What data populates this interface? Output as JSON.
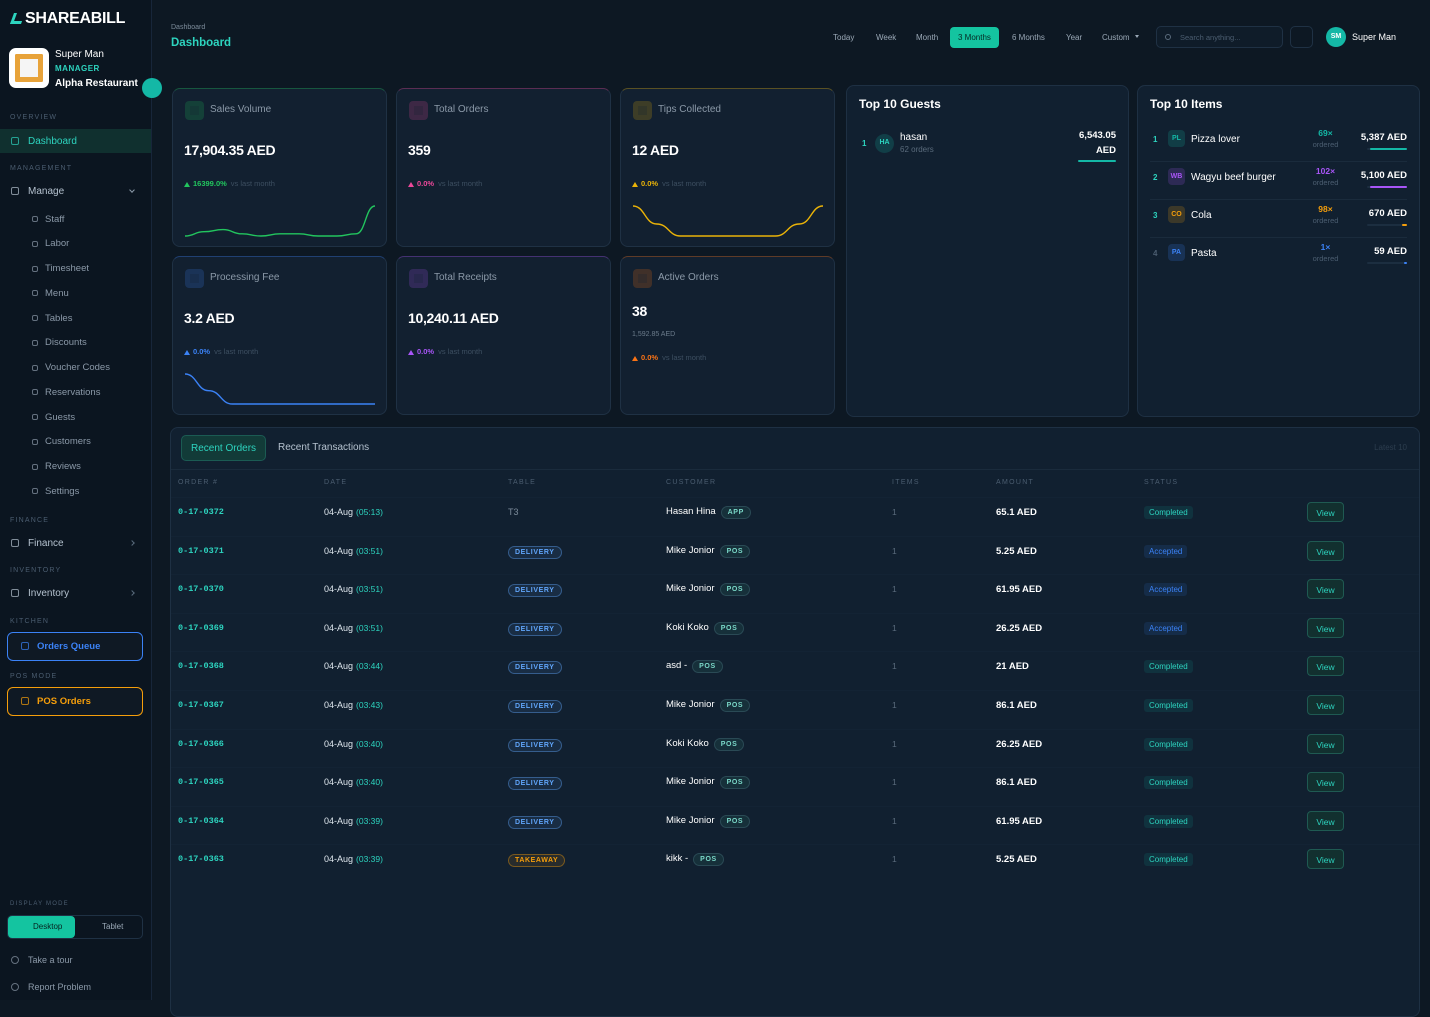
{
  "sidebar": {
    "brand": "SHAREABILL",
    "user": {
      "name": "Super Man",
      "role": "MANAGER",
      "restaurant": "Alpha Restaurant"
    },
    "sections": [
      {
        "title": "OVERVIEW",
        "items": [
          {
            "label": "Dashboard",
            "active": true
          }
        ]
      },
      {
        "title": "MANAGEMENT",
        "items": [
          {
            "label": "Manage",
            "children": [
              "Staff",
              "Labor",
              "Timesheet",
              "Menu",
              "Tables",
              "Discounts",
              "Voucher Codes",
              "Reservations",
              "Guests",
              "Customers",
              "Reviews",
              "Settings"
            ]
          }
        ]
      },
      {
        "title": "FINANCE",
        "items": [
          {
            "label": "Finance"
          }
        ]
      },
      {
        "title": "INVENTORY",
        "items": [
          {
            "label": "Inventory"
          }
        ]
      },
      {
        "title": "KITCHEN",
        "button": "Orders Queue",
        "color": "#3b82f6"
      },
      {
        "title": "POS MODE",
        "button": "POS Orders",
        "color": "#f59e0b"
      }
    ],
    "display_mode": {
      "title": "DISPLAY MODE",
      "options": [
        "Desktop",
        "Tablet"
      ],
      "active": 0
    },
    "footer": [
      "Take a tour",
      "Report Problem"
    ]
  },
  "header": {
    "breadcrumb": "Dashboard",
    "title": "Dashboard",
    "filters": [
      "Today",
      "Week",
      "Month",
      "3 Months",
      "6 Months",
      "Year",
      "Custom"
    ],
    "active_filter": 3,
    "search_placeholder": "Search anything...",
    "user": {
      "initials": "SM",
      "name": "Super Man"
    }
  },
  "cards": [
    {
      "label": "Sales Volume",
      "value": "17,904.35 AED",
      "change": "16399.0%",
      "note": "vs last month",
      "color": "#22c55e",
      "trend": [
        3,
        4,
        4.5,
        3.5,
        3,
        3.5,
        3.5,
        3,
        3,
        3.5,
        10
      ]
    },
    {
      "label": "Total Orders",
      "value": "359",
      "change": "0.0%",
      "note": "vs last month",
      "color": "#ec4899"
    },
    {
      "label": "Tips Collected",
      "value": "12 AED",
      "change": "0.0%",
      "note": "vs last month",
      "color": "#eab308",
      "trend": [
        9,
        6,
        4,
        4,
        4,
        4,
        4,
        6,
        9
      ]
    },
    {
      "label": "Processing Fee",
      "value": "3.2 AED",
      "change": "0.0%",
      "note": "vs last month",
      "color": "#3b82f6",
      "trend": [
        10,
        5,
        1,
        1,
        1,
        1,
        1,
        1,
        1
      ]
    },
    {
      "label": "Total Receipts",
      "value": "10,240.11 AED",
      "change": "0.0%",
      "note": "vs last month",
      "color": "#a855f7"
    },
    {
      "label": "Active Orders",
      "value": "38",
      "sub": "1,592.85 AED",
      "change": "0.0%",
      "note": "vs last month",
      "color": "#f97316"
    }
  ],
  "top_guests": {
    "title": "Top 10 Guests",
    "rows": [
      {
        "rank": 1,
        "initials": "HA",
        "name": "hasan",
        "orders": "62 orders",
        "amount": "6,543.05 AED"
      }
    ]
  },
  "top_items": {
    "title": "Top 10 Items",
    "rows": [
      {
        "rank": 1,
        "initials": "PL",
        "name": "Pizza lover",
        "count": "69×",
        "note": "ordered",
        "amount": "5,387 AED",
        "color": "#14b8a6"
      },
      {
        "rank": 2,
        "initials": "WB",
        "name": "Wagyu beef burger",
        "count": "102×",
        "note": "ordered",
        "amount": "5,100 AED",
        "color": "#a855f7"
      },
      {
        "rank": 3,
        "initials": "CO",
        "name": "Cola",
        "count": "98×",
        "note": "ordered",
        "amount": "670 AED",
        "color": "#f59e0b"
      },
      {
        "rank": 4,
        "initials": "PA",
        "name": "Pasta",
        "count": "1×",
        "note": "ordered",
        "amount": "59 AED",
        "color": "#3b82f6"
      }
    ]
  },
  "orders": {
    "tabs": [
      "Recent Orders",
      "Recent Transactions"
    ],
    "active_tab": 0,
    "latest": "Latest 10",
    "columns": [
      "ORDER #",
      "DATE",
      "TABLE",
      "CUSTOMER",
      "ITEMS",
      "AMOUNT",
      "STATUS"
    ],
    "rows": [
      {
        "order": "0-17-0372",
        "date": "04-Aug",
        "time": "(05:13)",
        "table": "T3",
        "customer": "Hasan Hina",
        "source": "APP",
        "items": 1,
        "amount": "65.1 AED",
        "status": "Completed",
        "action": "View"
      },
      {
        "order": "0-17-0371",
        "date": "04-Aug",
        "time": "(03:51)",
        "badge": "DELIVERY",
        "customer": "Mike Jonior",
        "source": "POS",
        "items": 1,
        "amount": "5.25 AED",
        "status": "Accepted",
        "action": "View"
      },
      {
        "order": "0-17-0370",
        "date": "04-Aug",
        "time": "(03:51)",
        "badge": "DELIVERY",
        "customer": "Mike Jonior",
        "source": "POS",
        "items": 1,
        "amount": "61.95 AED",
        "status": "Accepted",
        "action": "View"
      },
      {
        "order": "0-17-0369",
        "date": "04-Aug",
        "time": "(03:51)",
        "badge": "DELIVERY",
        "customer": "Koki Koko",
        "source": "POS",
        "items": 1,
        "amount": "26.25 AED",
        "status": "Accepted",
        "action": "View"
      },
      {
        "order": "0-17-0368",
        "date": "04-Aug",
        "time": "(03:44)",
        "badge": "DELIVERY",
        "customer": "asd -",
        "source": "POS",
        "items": 1,
        "amount": "21 AED",
        "status": "Completed",
        "action": "View"
      },
      {
        "order": "0-17-0367",
        "date": "04-Aug",
        "time": "(03:43)",
        "badge": "DELIVERY",
        "customer": "Mike Jonior",
        "source": "POS",
        "items": 1,
        "amount": "86.1 AED",
        "status": "Completed",
        "action": "View"
      },
      {
        "order": "0-17-0366",
        "date": "04-Aug",
        "time": "(03:40)",
        "badge": "DELIVERY",
        "customer": "Koki Koko",
        "source": "POS",
        "items": 1,
        "amount": "26.25 AED",
        "status": "Completed",
        "action": "View"
      },
      {
        "order": "0-17-0365",
        "date": "04-Aug",
        "time": "(03:40)",
        "badge": "DELIVERY",
        "customer": "Mike Jonior",
        "source": "POS",
        "items": 1,
        "amount": "86.1 AED",
        "status": "Completed",
        "action": "View"
      },
      {
        "order": "0-17-0364",
        "date": "04-Aug",
        "time": "(03:39)",
        "badge": "DELIVERY",
        "customer": "Mike Jonior",
        "source": "POS",
        "items": 1,
        "amount": "61.95 AED",
        "status": "Completed",
        "action": "View"
      },
      {
        "order": "0-17-0363",
        "date": "04-Aug",
        "time": "(03:39)",
        "badge": "TAKEAWAY",
        "customer": "kikk -",
        "source": "POS",
        "items": 1,
        "amount": "5.25 AED",
        "status": "Completed",
        "action": "View"
      }
    ]
  }
}
